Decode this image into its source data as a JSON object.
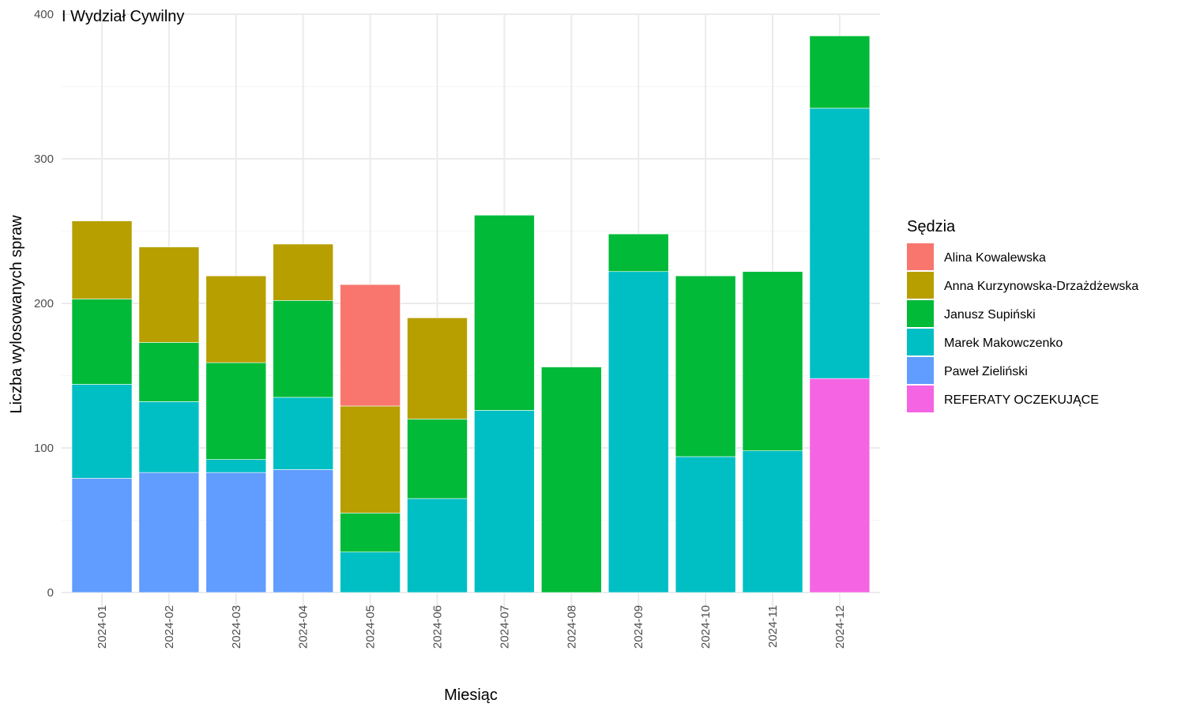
{
  "chart_data": {
    "type": "bar",
    "stacked": true,
    "title": "I Wydział Cywilny",
    "xlabel": "Miesiąc",
    "ylabel": "Liczba wylosowanych spraw",
    "ylim": [
      0,
      400
    ],
    "yticks": [
      0,
      100,
      200,
      300,
      400
    ],
    "grid": true,
    "legend_title": "Sędzia",
    "legend_position": "right",
    "categories": [
      "2024-01",
      "2024-02",
      "2024-03",
      "2024-04",
      "2024-05",
      "2024-06",
      "2024-07",
      "2024-08",
      "2024-09",
      "2024-10",
      "2024-11",
      "2024-12"
    ],
    "series": [
      {
        "name": "Alina Kowalewska",
        "color": "#F8766D",
        "values": [
          0,
          0,
          0,
          0,
          84,
          0,
          0,
          0,
          0,
          0,
          0,
          0
        ]
      },
      {
        "name": "Anna Kurzynowska-Drzażdżewska",
        "color": "#B79F00",
        "values": [
          54,
          66,
          60,
          39,
          74,
          70,
          0,
          0,
          0,
          0,
          0,
          0
        ]
      },
      {
        "name": "Janusz Supiński",
        "color": "#00BA38",
        "values": [
          59,
          41,
          67,
          67,
          27,
          55,
          135,
          156,
          26,
          125,
          124,
          50
        ]
      },
      {
        "name": "Marek Makowczenko",
        "color": "#00BFC4",
        "values": [
          65,
          49,
          9,
          50,
          28,
          65,
          126,
          0,
          222,
          94,
          98,
          187
        ]
      },
      {
        "name": "Paweł Zieliński",
        "color": "#619CFF",
        "values": [
          79,
          83,
          83,
          85,
          0,
          0,
          0,
          0,
          0,
          0,
          0,
          0
        ]
      },
      {
        "name": "REFERATY OCZEKUJĄCE",
        "color": "#F564E3",
        "values": [
          0,
          0,
          0,
          0,
          0,
          0,
          0,
          0,
          0,
          0,
          0,
          148
        ]
      }
    ]
  }
}
